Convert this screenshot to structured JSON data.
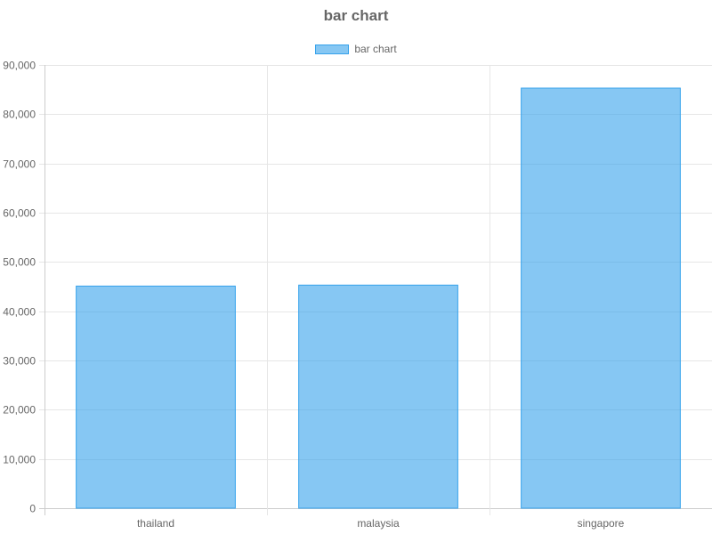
{
  "chart_data": {
    "type": "bar",
    "title": "bar chart",
    "categories": [
      "thailand",
      "malaysia",
      "singapore"
    ],
    "series": [
      {
        "name": "bar chart",
        "values": [
          45100,
          45300,
          85300
        ]
      }
    ],
    "ylim": [
      0,
      90000
    ],
    "yticks": [
      0,
      10000,
      20000,
      30000,
      40000,
      50000,
      60000,
      70000,
      80000,
      90000
    ],
    "ytick_labels": [
      "0",
      "10,000",
      "20,000",
      "30,000",
      "40,000",
      "50,000",
      "60,000",
      "70,000",
      "80,000",
      "90,000"
    ],
    "grid": true,
    "legend_position": "top",
    "colors": {
      "bar_fill": "#36a2eb",
      "bar_border": "#36a2eb",
      "grid": "#e6e6e6",
      "text": "#666666"
    }
  }
}
